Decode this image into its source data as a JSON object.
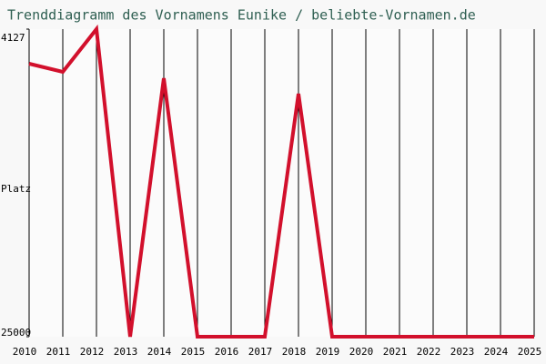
{
  "chart_data": {
    "type": "line",
    "title": "Trenddiagramm des Vornamens Eunike / beliebte-Vornamen.de",
    "y_label": "Platz",
    "x": [
      2010,
      2011,
      2012,
      2013,
      2014,
      2015,
      2016,
      2017,
      2018,
      2019,
      2020,
      2021,
      2022,
      2023,
      2024,
      2025
    ],
    "values": [
      6474,
      7029,
      4127,
      25000,
      7462,
      25000,
      25000,
      25000,
      8512,
      25000,
      25000,
      25000,
      25000,
      25000,
      25000,
      25000
    ],
    "color": "#d2102c",
    "xlim": [
      2010,
      2025
    ],
    "ylim": [
      25000,
      4127
    ],
    "yticks": [
      4127,
      25000
    ],
    "grid": true
  }
}
